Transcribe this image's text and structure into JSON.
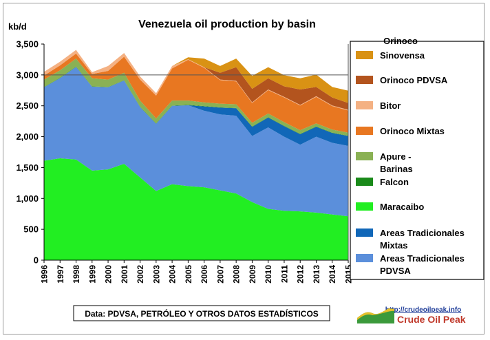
{
  "chart_data": {
    "type": "area",
    "title": "Venezuela oil production  by basin",
    "ylabel": "kb/d",
    "ylim": [
      0,
      3500
    ],
    "yticks": [
      "0",
      "500",
      "1,000",
      "1,500",
      "2,000",
      "2,500",
      "3,000",
      "3,500"
    ],
    "gridlines": [
      3000
    ],
    "x": [
      1996,
      1997,
      1998,
      1999,
      2000,
      2001,
      2002,
      2003,
      2004,
      2005,
      2006,
      2007,
      2008,
      2009,
      2010,
      2011,
      2012,
      2013,
      2014,
      2015
    ],
    "xtick_labels": [
      "1996",
      "1997",
      "1998",
      "1999",
      "2000",
      "2001",
      "2002",
      "2003",
      "2004",
      "2005",
      "2006",
      "2007",
      "2008",
      "2009",
      "2010",
      "2011",
      "2012",
      "2013",
      "2014",
      "2015"
    ],
    "series": [
      {
        "name": "Maracaibo",
        "color": "#22ee22",
        "values": [
          1610,
          1650,
          1630,
          1450,
          1470,
          1560,
          1340,
          1120,
          1230,
          1200,
          1180,
          1130,
          1080,
          940,
          830,
          800,
          790,
          770,
          740,
          710
        ]
      },
      {
        "name": "Areas Tradicionales PDVSA",
        "color": "#5b8fdb",
        "values": [
          1190,
          1300,
          1500,
          1360,
          1330,
          1350,
          1140,
          1090,
          1270,
          1310,
          1240,
          1230,
          1260,
          1070,
          1320,
          1200,
          1080,
          1230,
          1160,
          1140
        ]
      },
      {
        "name": "Areas Tradicionales Mixtas",
        "color": "#1167b8",
        "values": [
          0,
          0,
          0,
          0,
          0,
          0,
          0,
          0,
          0,
          0,
          70,
          110,
          120,
          150,
          160,
          170,
          170,
          160,
          160,
          160
        ]
      },
      {
        "name": "Falcon",
        "color": "#1a8a1a",
        "values": [
          5,
          5,
          5,
          5,
          5,
          5,
          5,
          5,
          5,
          5,
          5,
          5,
          5,
          5,
          5,
          5,
          5,
          5,
          5,
          5
        ]
      },
      {
        "name": "Apure - Barinas",
        "color": "#8ab154",
        "values": [
          120,
          120,
          130,
          130,
          120,
          120,
          100,
          80,
          80,
          70,
          60,
          60,
          60,
          60,
          60,
          60,
          60,
          50,
          50,
          50
        ]
      },
      {
        "name": "Orinoco Mixtas",
        "color": "#e87721",
        "values": [
          65,
          80,
          80,
          70,
          140,
          260,
          340,
          370,
          520,
          660,
          560,
          380,
          370,
          320,
          380,
          400,
          400,
          430,
          380,
          360
        ]
      },
      {
        "name": "Bitor",
        "color": "#f4b183",
        "values": [
          60,
          60,
          60,
          30,
          80,
          60,
          50,
          40,
          40,
          10,
          10,
          10,
          10,
          10,
          10,
          10,
          10,
          10,
          10,
          10
        ]
      },
      {
        "name": "Orinoco PDVSA",
        "color": "#b3541e",
        "values": [
          0,
          0,
          0,
          0,
          0,
          0,
          0,
          0,
          0,
          0,
          0,
          110,
          220,
          220,
          180,
          170,
          250,
          150,
          130,
          110
        ]
      },
      {
        "name": "Sinovensa",
        "color": "#d99214",
        "values": [
          0,
          0,
          0,
          0,
          0,
          0,
          0,
          0,
          0,
          30,
          140,
          110,
          140,
          210,
          180,
          180,
          180,
          200,
          170,
          200
        ]
      }
    ],
    "legend": {
      "placement": "right",
      "header": "Orinoco",
      "entries": [
        {
          "label": "Sinovensa",
          "series": "Sinovensa"
        },
        {
          "label": "Orinoco PDVSA",
          "series": "Orinoco PDVSA"
        },
        {
          "label": "Bitor",
          "series": "Bitor"
        },
        {
          "label": "Orinoco Mixtas",
          "series": "Orinoco Mixtas"
        },
        {
          "label": "Apure - Barinas",
          "series": "Apure - Barinas"
        },
        {
          "label": "Falcon",
          "series": "Falcon"
        },
        {
          "label": "Maracaibo",
          "series": "Maracaibo"
        },
        {
          "label": "Areas Tradicionales Mixtas",
          "series": "Areas Tradicionales Mixtas"
        },
        {
          "label": "Areas Tradicionales PDVSA",
          "series": "Areas Tradicionales PDVSA"
        }
      ]
    },
    "source_note": "Data: PDVSA, PETRÓLEO Y OTROS DATOS ESTADÍSTICOS",
    "watermark": {
      "url": "http://crudeoilpeak.info",
      "name": "Crude Oil Peak"
    }
  }
}
